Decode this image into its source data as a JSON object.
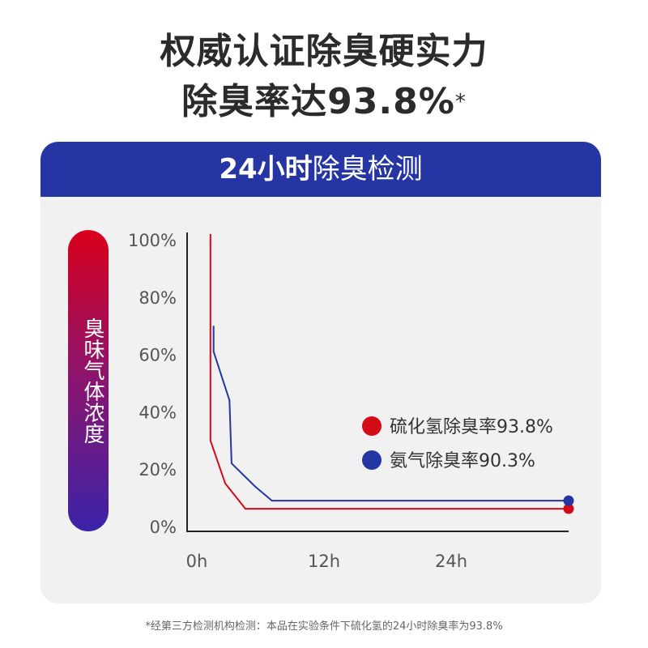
{
  "headline": {
    "line1": "权威认证除臭硬实力",
    "line2_main": "除臭率达93.8%",
    "line2_mark": "*"
  },
  "card": {
    "title_bold": "24小时",
    "title_rest": "除臭检测"
  },
  "ylabel": "臭味气体浓度",
  "footnote": "*经第三方检测机构检测：本品在实验条件下硫化氢的24小时除臭率为93.8%",
  "colors": {
    "header_blue": "#2536a4",
    "red_series": "#d20b17",
    "blue_series": "#2536a4"
  },
  "chart_data": {
    "type": "line",
    "ylabel": "臭味气体浓度",
    "xlabel": "",
    "y_ticks": [
      "0%",
      "20%",
      "40%",
      "60%",
      "80%",
      "100%"
    ],
    "x_ticks": [
      {
        "label": "0h",
        "value": 0
      },
      {
        "label": "12h",
        "value": 12
      },
      {
        "label": "24h",
        "value": 24
      }
    ],
    "ylim": [
      0,
      100
    ],
    "xlim": [
      0,
      36
    ],
    "series": [
      {
        "name": "硫化氢除臭率93.8%",
        "color": "#d20b17",
        "points": [
          [
            2.2,
            102
          ],
          [
            2.2,
            30
          ],
          [
            3.6,
            15
          ],
          [
            5.5,
            6.2
          ],
          [
            36,
            6.2
          ]
        ],
        "end_marker": [
          36,
          6.2
        ]
      },
      {
        "name": "氨气除臭率90.3%",
        "color": "#2536a4",
        "points": [
          [
            2.5,
            70
          ],
          [
            2.5,
            61
          ],
          [
            4.0,
            44
          ],
          [
            4.2,
            22
          ],
          [
            6.4,
            14
          ],
          [
            8.0,
            9.0
          ],
          [
            36,
            9.0
          ]
        ],
        "end_marker": [
          36,
          9.0
        ]
      }
    ]
  }
}
